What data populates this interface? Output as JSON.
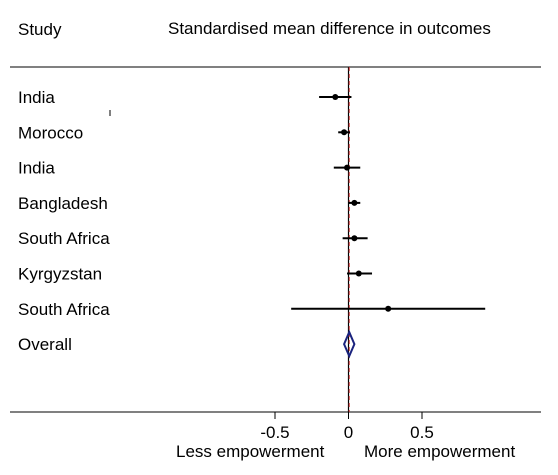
{
  "header": {
    "study_label": "Study",
    "effect_label": "Standardised mean difference in outcomes"
  },
  "chart_data": {
    "type": "forest",
    "x_min": -0.5,
    "x_max": 0.5,
    "xticks": [
      -0.5,
      0,
      0.5
    ],
    "xtick_labels": [
      "-0.5",
      "0",
      "0.5"
    ],
    "reference_line": 0,
    "overall_line": 0.005,
    "xlabel_left": "Less empowerment",
    "xlabel_right": "More empowerment",
    "studies": [
      {
        "name": "India",
        "estimate": -0.09,
        "ci_low": -0.2,
        "ci_high": 0.02
      },
      {
        "name": "Morocco",
        "estimate": -0.03,
        "ci_low": -0.07,
        "ci_high": 0.01
      },
      {
        "name": "India",
        "estimate": -0.01,
        "ci_low": -0.1,
        "ci_high": 0.08
      },
      {
        "name": "Bangladesh",
        "estimate": 0.04,
        "ci_low": 0.0,
        "ci_high": 0.08
      },
      {
        "name": "South Africa",
        "estimate": 0.04,
        "ci_low": -0.04,
        "ci_high": 0.13
      },
      {
        "name": "Kyrgyzstan",
        "estimate": 0.07,
        "ci_low": -0.01,
        "ci_high": 0.16
      },
      {
        "name": "South Africa",
        "estimate": 0.27,
        "ci_low": -0.39,
        "ci_high": 0.93
      }
    ],
    "overall": {
      "name": "Overall",
      "estimate": 0.005,
      "ci_low": -0.03,
      "ci_high": 0.04
    },
    "colors": {
      "points": "#000000",
      "diamond": "#1a237e",
      "reference": "#000000",
      "overall_line": "#cc3333",
      "frame": "#000000"
    }
  }
}
